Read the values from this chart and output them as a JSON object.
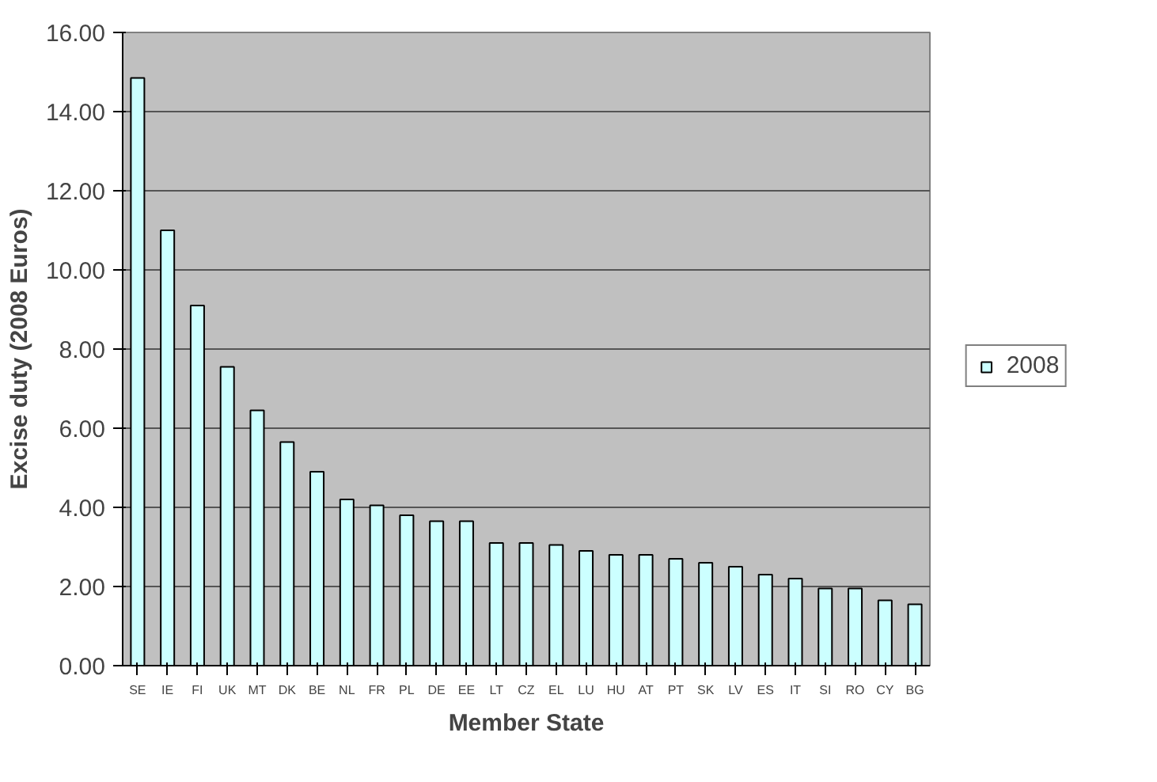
{
  "chart_data": {
    "type": "bar",
    "xlabel": "Member State",
    "ylabel": "Excise duty (2008 Euros)",
    "categories": [
      "SE",
      "IE",
      "FI",
      "UK",
      "MT",
      "DK",
      "BE",
      "NL",
      "FR",
      "PL",
      "DE",
      "EE",
      "LT",
      "CZ",
      "EL",
      "LU",
      "HU",
      "AT",
      "PT",
      "SK",
      "LV",
      "ES",
      "IT",
      "SI",
      "RO",
      "CY",
      "BG"
    ],
    "series": [
      {
        "name": "2008",
        "color": "#ccffff",
        "values": [
          14.85,
          11.0,
          9.1,
          7.55,
          6.45,
          5.65,
          4.9,
          4.2,
          4.05,
          3.8,
          3.65,
          3.65,
          3.1,
          3.1,
          3.05,
          2.9,
          2.8,
          2.8,
          2.7,
          2.6,
          2.5,
          2.3,
          2.2,
          1.95,
          1.95,
          1.65,
          1.55
        ]
      }
    ],
    "ylim": [
      0,
      16
    ],
    "yticks": [
      {
        "value": 0,
        "label": "0.00"
      },
      {
        "value": 2,
        "label": "2.00"
      },
      {
        "value": 4,
        "label": "4.00"
      },
      {
        "value": 6,
        "label": "6.00"
      },
      {
        "value": 8,
        "label": "8.00"
      },
      {
        "value": 10,
        "label": "10.00"
      },
      {
        "value": 12,
        "label": "12.00"
      },
      {
        "value": 14,
        "label": "14.00"
      },
      {
        "value": 16,
        "label": "16.00"
      }
    ],
    "grid": "y",
    "legend": "right"
  }
}
